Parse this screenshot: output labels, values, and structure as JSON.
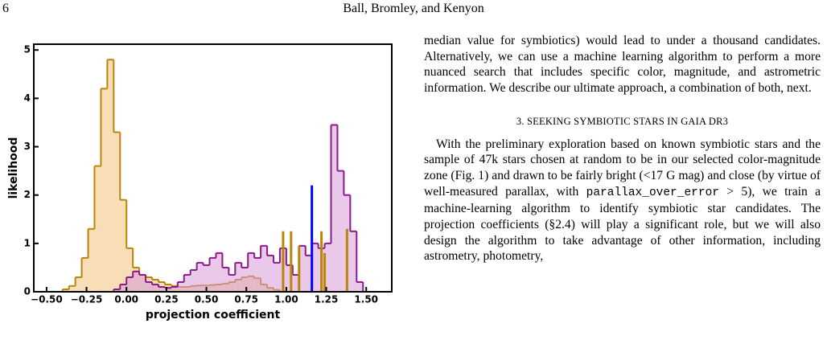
{
  "header": {
    "page_number": "6",
    "authors": "Ball, Bromley, and Kenyon"
  },
  "chart_data": {
    "type": "histogram",
    "xlabel": "projection coefficient",
    "ylabel": "likelihood",
    "xlim": [
      -0.58,
      1.66
    ],
    "ylim": [
      0,
      5.12
    ],
    "xticks": [
      {
        "value": -0.5,
        "label": "−0.50"
      },
      {
        "value": -0.25,
        "label": "−0.25"
      },
      {
        "value": 0,
        "label": "0.00"
      },
      {
        "value": 0.25,
        "label": "0.25"
      },
      {
        "value": 0.5,
        "label": "0.50"
      },
      {
        "value": 0.75,
        "label": "0.75"
      },
      {
        "value": 1,
        "label": "1.00"
      },
      {
        "value": 1.25,
        "label": "1.25"
      },
      {
        "value": 1.5,
        "label": "1.50"
      }
    ],
    "yticks": [
      0,
      1,
      2,
      3,
      4,
      5
    ],
    "series": [
      {
        "color": "#f0c27a",
        "edge_color": "#b8860b",
        "bins": [
          -0.4,
          -0.36,
          -0.32,
          -0.28,
          -0.24,
          -0.2,
          -0.16,
          -0.12,
          -0.08,
          -0.04,
          0.0,
          0.04,
          0.08,
          0.12,
          0.16,
          0.2,
          0.24,
          0.28,
          0.32,
          0.36,
          0.4,
          0.44,
          0.48,
          0.52,
          0.56,
          0.6,
          0.64,
          0.68,
          0.72,
          0.76,
          0.8,
          0.84,
          0.88,
          0.92,
          0.96
        ],
        "values": [
          0.05,
          0.12,
          0.3,
          0.7,
          1.3,
          2.6,
          4.2,
          4.8,
          3.3,
          1.9,
          0.9,
          0.5,
          0.35,
          0.3,
          0.25,
          0.2,
          0.15,
          0.12,
          0.1,
          0.1,
          0.12,
          0.13,
          0.13,
          0.14,
          0.15,
          0.17,
          0.2,
          0.25,
          0.3,
          0.32,
          0.28,
          0.15,
          0.08,
          0.04
        ]
      },
      {
        "color": "#d79ad9",
        "edge_color": "#8b1a8b",
        "bins": [
          -0.08,
          -0.04,
          0.0,
          0.04,
          0.08,
          0.12,
          0.16,
          0.2,
          0.24,
          0.28,
          0.32,
          0.36,
          0.4,
          0.44,
          0.48,
          0.52,
          0.56,
          0.6,
          0.64,
          0.68,
          0.72,
          0.76,
          0.8,
          0.84,
          0.88,
          0.92,
          0.96,
          1.0,
          1.04,
          1.08,
          1.12,
          1.16,
          1.2,
          1.24,
          1.28,
          1.32,
          1.36,
          1.4,
          1.44,
          1.48
        ],
        "values": [
          0.05,
          0.15,
          0.3,
          0.42,
          0.35,
          0.2,
          0.15,
          0.1,
          0.08,
          0.1,
          0.2,
          0.35,
          0.45,
          0.6,
          0.55,
          0.7,
          0.8,
          0.5,
          0.35,
          0.6,
          0.5,
          0.8,
          0.7,
          0.95,
          0.75,
          0.6,
          0.9,
          0.55,
          0.35,
          0.95,
          0.75,
          1.0,
          0.9,
          1.0,
          3.45,
          2.5,
          2.0,
          1.25,
          0.2
        ]
      }
    ],
    "vlines": [
      {
        "color": "#b8860b",
        "x": [
          0.98,
          1.03,
          1.08,
          1.22,
          1.24,
          1.38
        ],
        "values": [
          1.25,
          1.25,
          0.95,
          1.25,
          0.8,
          1.3
        ]
      },
      {
        "color": "#0000ff",
        "x": [
          1.16
        ],
        "values": [
          2.2
        ]
      }
    ]
  },
  "body": {
    "paragraph1": "median value for symbiotics) would lead to under a thousand candidates. Alternatively, we can use a machine learning algorithm to perform a more nuanced search that includes specific color, magnitude, and astrometric information. We describe our ultimate approach, a combination of both, next.",
    "section_heading": "3. SEEKING SYMBIOTIC STARS IN GAIA DR3",
    "paragraph2": [
      "With the preliminary exploration based on known symbiotic stars and the sample of 47k stars chosen at random to be in our selected color-magnitude zone (Fig. 1) and drawn to be fairly bright (<17 G mag) and close (by virtue of well-measured parallax, with ",
      "parallax_over_error",
      " > 5), we train a machine-learning algorithm to identify symbiotic star candidates. The projection coefficients (§2.4) will play a significant role, but we will also design the algorithm to take advantage of other information, including astrometry, photometry,"
    ]
  }
}
